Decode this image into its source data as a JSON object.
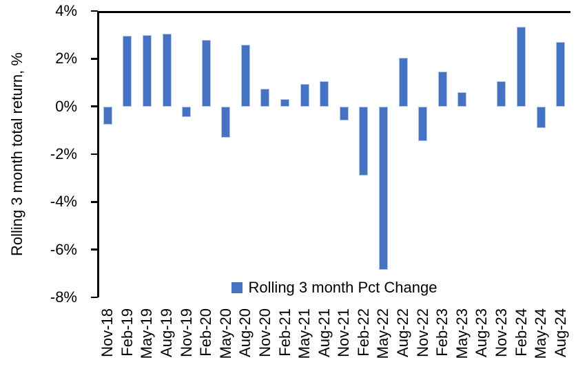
{
  "chart_data": {
    "type": "bar",
    "title": "",
    "xlabel": "",
    "ylabel": "Rolling 3 month total return, %",
    "ylim": [
      -8,
      4
    ],
    "ytick_step": 2,
    "yticks": [
      "4%",
      "2%",
      "0%",
      "-2%",
      "-4%",
      "-6%",
      "-8%"
    ],
    "grid": false,
    "categories": [
      "Nov-18",
      "Feb-19",
      "May-19",
      "Aug-19",
      "Nov-19",
      "Feb-20",
      "May-20",
      "Aug-20",
      "Nov-20",
      "Feb-21",
      "May-21",
      "Aug-21",
      "Nov-21",
      "Feb-22",
      "May-22",
      "Aug-22",
      "Nov-22",
      "Feb-23",
      "May-23",
      "Aug-23",
      "Nov-23",
      "Feb-24",
      "May-24",
      "Aug-24"
    ],
    "values": [
      -0.75,
      2.95,
      3.0,
      3.05,
      -0.45,
      2.8,
      -1.3,
      2.6,
      0.75,
      0.3,
      0.95,
      1.05,
      -0.6,
      -2.9,
      -6.85,
      2.05,
      -1.45,
      1.45,
      0.6,
      0,
      1.05,
      3.35,
      -0.9,
      2.7
    ],
    "legend": {
      "position": "bottom-center-inside",
      "entries": [
        {
          "label": "Rolling 3 month Pct Change",
          "color": "#4472C4"
        }
      ]
    },
    "bar_color": "#4472C4",
    "bar_border_color": "#B4C7E7",
    "axis_color": "#000000"
  }
}
